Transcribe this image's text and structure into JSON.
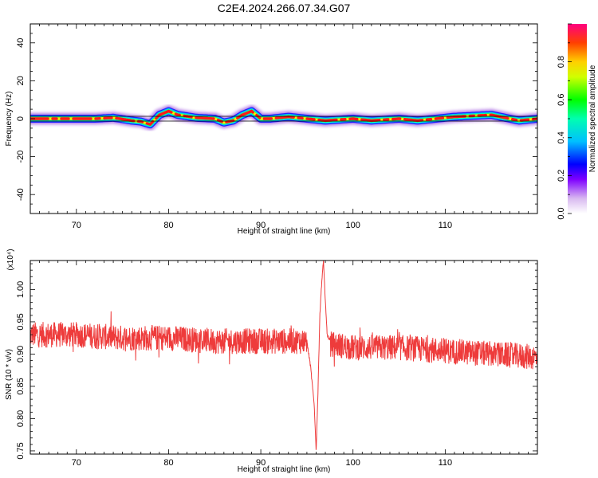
{
  "title": "C2E4.2024.266.07.34.G07",
  "colors": {
    "snr_line": "#ee3b3b",
    "axis": "#000000"
  },
  "chart_data": [
    {
      "type": "heatmap",
      "name": "spectrogram",
      "xlabel": "Height of straight line (km)",
      "ylabel": "Frequency (Hz)",
      "xlim": [
        65,
        120
      ],
      "ylim": [
        -50,
        50
      ],
      "xticks": [
        "70",
        "80",
        "90",
        "100",
        "110"
      ],
      "yticks": [
        "40",
        "20",
        "0",
        "-20",
        "-40"
      ],
      "colorbar": {
        "label": "Normalized spectral amplitude",
        "range": [
          0,
          1
        ],
        "ticks": [
          "0.0",
          "0.2",
          "0.4",
          "0.6",
          "0.8"
        ]
      },
      "ridge": {
        "x": [
          65,
          67,
          70,
          72,
          74,
          76,
          77,
          78,
          79,
          80,
          81,
          83,
          85,
          86,
          87,
          88,
          89,
          90,
          91,
          93,
          95,
          97,
          100,
          102,
          105,
          107,
          109,
          111,
          113,
          115,
          117,
          118,
          120
        ],
        "freq": [
          0,
          0,
          0,
          0,
          0.5,
          -1,
          -1.5,
          -3,
          2,
          4,
          2,
          0.5,
          0,
          -2,
          -1,
          2,
          4,
          0,
          0,
          1,
          0,
          -1,
          0,
          -1,
          0,
          -1,
          0,
          1,
          1.5,
          2,
          0,
          -1,
          0
        ]
      }
    },
    {
      "type": "line",
      "name": "snr",
      "xlabel": "Height of straight line (km)",
      "ylabel": "SNR (10 * v/v)",
      "yscale_label": "(x10⁴)",
      "xlim": [
        65,
        120
      ],
      "ylim": [
        0.745,
        1.045
      ],
      "xticks": [
        "70",
        "80",
        "90",
        "100",
        "110"
      ],
      "yticks": [
        "1.00",
        "0.95",
        "0.90",
        "0.85",
        "0.80",
        "0.75"
      ],
      "baseline": {
        "x": [
          65,
          70,
          75,
          80,
          85,
          90,
          93,
          95,
          98,
          100,
          105,
          110,
          115,
          120
        ],
        "y": [
          0.93,
          0.93,
          0.925,
          0.925,
          0.92,
          0.92,
          0.92,
          0.92,
          0.915,
          0.91,
          0.91,
          0.905,
          0.9,
          0.895
        ]
      },
      "noise_amplitude": 0.02,
      "event": {
        "x": [
          95.0,
          95.4,
          95.8,
          96.0,
          96.2,
          96.4,
          96.6,
          96.8,
          97.0,
          97.2,
          97.5
        ],
        "y": [
          0.92,
          0.88,
          0.82,
          0.75,
          0.84,
          0.96,
          1.01,
          1.045,
          0.98,
          0.93,
          0.92
        ]
      }
    }
  ]
}
